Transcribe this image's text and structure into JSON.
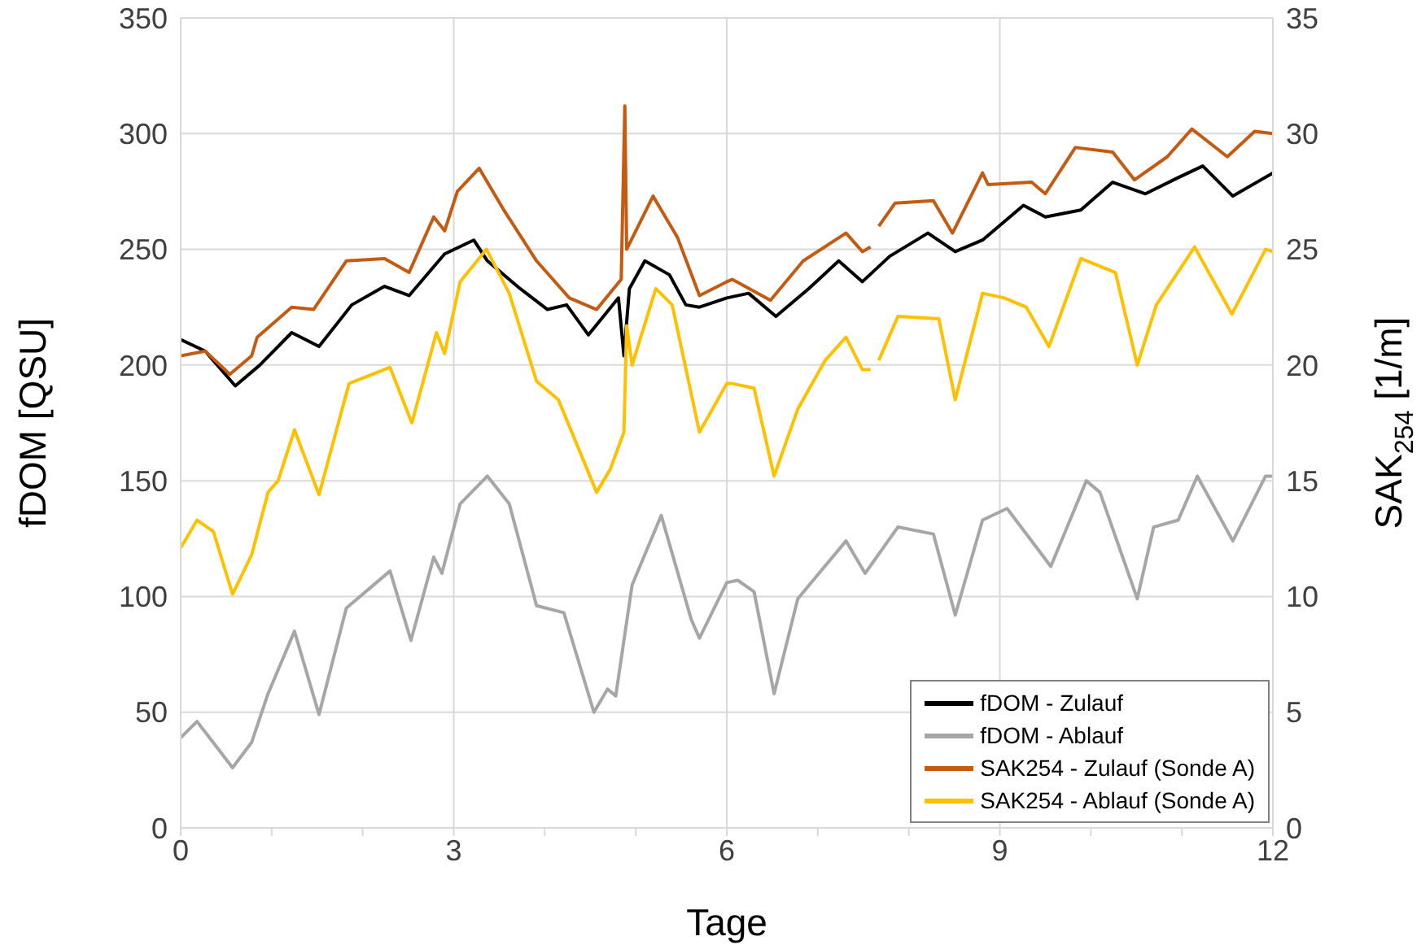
{
  "chart_data": {
    "type": "line",
    "xlabel": "Tage",
    "ylabel": "fDOM [QSU]",
    "y2label": "SAK$_{254}$ [1/m]",
    "xlim": [
      0,
      12
    ],
    "xticks": [
      0,
      {
        "value": 1,
        "label": null
      },
      {
        "value": 2,
        "label": null
      },
      3,
      {
        "value": 4,
        "label": null
      },
      {
        "value": 5,
        "label": null
      },
      6,
      {
        "value": 7,
        "label": null
      },
      {
        "value": 8,
        "label": null
      },
      9,
      {
        "value": 10,
        "label": null
      },
      {
        "value": 11,
        "label": null
      },
      12
    ],
    "ylim": [
      0,
      350
    ],
    "yticks": [
      0,
      50,
      100,
      150,
      200,
      250,
      300,
      350
    ],
    "y2lim": [
      0,
      35
    ],
    "y2ticks": [
      0,
      5,
      10,
      15,
      20,
      25,
      30,
      35
    ],
    "grid": true,
    "legend": "bottom right",
    "marker": "none",
    "line_style": "solid",
    "series": [
      {
        "name": "fDOM - Zulauf",
        "color": "#000000",
        "x": [
          0,
          0.27,
          0.6,
          0.87,
          1.22,
          1.52,
          1.88,
          2.24,
          2.51,
          2.9,
          3.22,
          3.37,
          3.73,
          4.03,
          4.24,
          4.48,
          4.81,
          4.87,
          4.93,
          5.1,
          5.37,
          5.55,
          5.7,
          6.0,
          6.24,
          6.54,
          6.9,
          7.23,
          7.49,
          7.79,
          8.21,
          8.51,
          8.81,
          9.26,
          9.5,
          9.89,
          10.24,
          10.6,
          10.96,
          11.23,
          11.56,
          12
        ],
        "values": [
          211,
          206,
          191,
          200,
          214,
          208,
          226,
          234,
          230,
          248,
          254,
          245,
          233,
          224,
          226,
          213,
          229,
          204,
          233,
          245,
          239,
          226,
          225,
          229,
          231,
          221,
          233,
          245,
          236,
          247,
          257,
          249,
          254,
          269,
          264,
          267,
          279,
          274,
          281,
          286,
          273,
          283
        ]
      },
      {
        "name": "fDOM - Ablauf",
        "color": "#a6a6a6",
        "x": [
          0,
          0.18,
          0.57,
          0.78,
          0.96,
          1.25,
          1.52,
          1.82,
          2.3,
          2.53,
          2.78,
          2.87,
          3.07,
          3.37,
          3.61,
          3.91,
          4.21,
          4.54,
          4.69,
          4.78,
          4.96,
          5.28,
          5.61,
          5.7,
          6.0,
          6.12,
          6.3,
          6.52,
          6.78,
          7.31,
          7.52,
          7.88,
          8.27,
          8.51,
          8.81,
          9.08,
          9.56,
          9.95,
          10.1,
          10.51,
          10.69,
          10.96,
          11.17,
          11.56,
          11.92,
          12
        ],
        "values": [
          39,
          46,
          26,
          37,
          58,
          85,
          49,
          95,
          111,
          81,
          117,
          110,
          140,
          152,
          140,
          96,
          93,
          50,
          60,
          57,
          105,
          135,
          90,
          82,
          106,
          107,
          102,
          58,
          99,
          124,
          110,
          130,
          127,
          92,
          133,
          138,
          113,
          150,
          145,
          99,
          130,
          133,
          152,
          124,
          152,
          152
        ]
      },
      {
        "name": "SAK254 - Zulauf (Sonde A)",
        "color": "#c55a11",
        "axis": "y2",
        "x": [
          0,
          0.27,
          0.54,
          0.78,
          0.84,
          1.22,
          1.46,
          1.82,
          2.24,
          2.51,
          2.78,
          2.9,
          3.04,
          3.28,
          3.55,
          3.91,
          4.27,
          4.57,
          4.84,
          4.88,
          4.9,
          5.19,
          5.46,
          5.7,
          6.0,
          6.06,
          6.48,
          6.84,
          7.31,
          7.49,
          7.58,
          7.62,
          7.67,
          7.85,
          8.27,
          8.48,
          8.81,
          8.87,
          9.35,
          9.5,
          9.83,
          10.24,
          10.48,
          10.84,
          11.11,
          11.5,
          11.8,
          12
        ],
        "values": [
          20.4,
          20.6,
          19.6,
          20.4,
          21.2,
          22.5,
          22.4,
          24.5,
          24.6,
          24.0,
          26.4,
          25.8,
          27.5,
          28.5,
          26.7,
          24.5,
          22.9,
          22.4,
          23.7,
          31.2,
          25.0,
          27.3,
          25.5,
          23.0,
          23.6,
          23.7,
          22.8,
          24.5,
          25.7,
          24.9,
          25.1,
          null,
          26.0,
          27.0,
          27.1,
          25.7,
          28.3,
          27.8,
          27.9,
          27.4,
          29.4,
          29.2,
          28.0,
          29.0,
          30.2,
          29.0,
          30.1,
          30.0
        ]
      },
      {
        "name": "SAK254 - Ablauf (Sonde A)",
        "color": "#ffc000",
        "axis": "y2",
        "x": [
          0,
          0.18,
          0.36,
          0.57,
          0.78,
          0.96,
          1.07,
          1.25,
          1.52,
          1.85,
          2.3,
          2.54,
          2.81,
          2.9,
          3.07,
          3.36,
          3.61,
          3.91,
          4.15,
          4.57,
          4.72,
          4.87,
          4.9,
          4.96,
          5.22,
          5.4,
          5.7,
          6.0,
          6.06,
          6.3,
          6.52,
          6.78,
          7.08,
          7.31,
          7.49,
          7.58,
          7.62,
          7.67,
          7.88,
          8.33,
          8.51,
          8.81,
          9.05,
          9.29,
          9.54,
          9.89,
          10.27,
          10.51,
          10.72,
          11.14,
          11.55,
          11.92,
          12
        ],
        "values": [
          12.1,
          13.3,
          12.8,
          10.1,
          11.8,
          14.5,
          15.0,
          17.2,
          14.4,
          19.2,
          19.9,
          17.5,
          21.4,
          20.5,
          23.6,
          25.0,
          23.1,
          19.3,
          18.5,
          14.5,
          15.5,
          17.1,
          21.7,
          20.0,
          23.3,
          22.6,
          17.1,
          19.2,
          19.2,
          19.0,
          15.2,
          18.1,
          20.2,
          21.2,
          19.8,
          19.8,
          null,
          20.2,
          22.1,
          22.0,
          18.5,
          23.1,
          22.9,
          22.5,
          20.8,
          24.6,
          24.0,
          20.0,
          22.6,
          25.1,
          22.2,
          25.0,
          24.9
        ]
      }
    ]
  }
}
